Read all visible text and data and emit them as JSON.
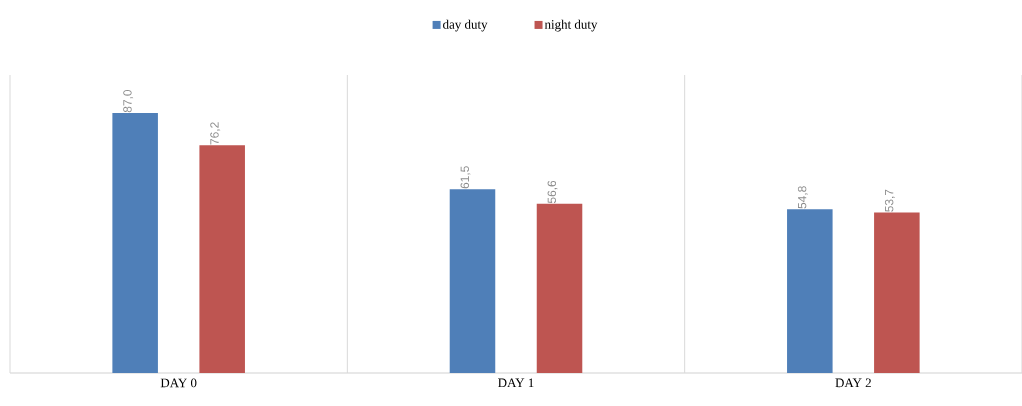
{
  "chart_data": {
    "type": "bar",
    "categories": [
      "DAY 0",
      "DAY 1",
      "DAY 2"
    ],
    "series": [
      {
        "name": "day duty",
        "color": "#4f7fb8",
        "values": [
          87.0,
          61.5,
          54.8
        ],
        "value_labels": [
          "87,0",
          "61,5",
          "54,8"
        ]
      },
      {
        "name": "night duty",
        "color": "#be5551",
        "values": [
          76.2,
          56.6,
          53.7
        ],
        "value_labels": [
          "76,2",
          "56,6",
          "53,7"
        ]
      }
    ],
    "grid": "x",
    "legend": "top"
  }
}
